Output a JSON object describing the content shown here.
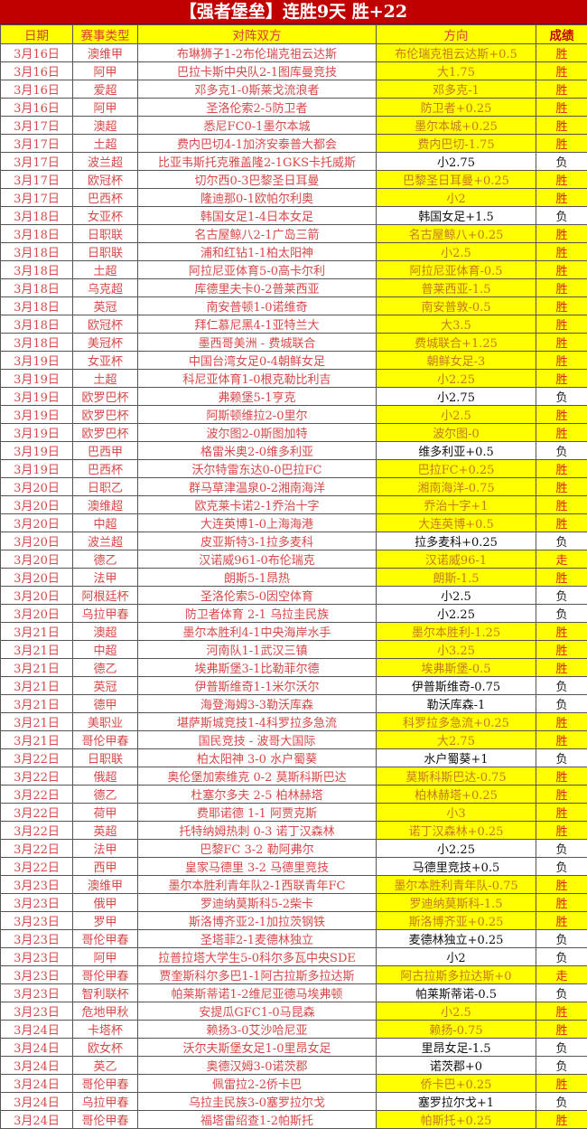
{
  "title": "【强者堡垒】连胜9天  胜+22",
  "colors": {
    "title_bg": "#c00000",
    "highlight": "#ffff00",
    "text_red": "#d84848",
    "win_text": "#c8781e"
  },
  "headers": {
    "date": "日期",
    "type": "赛事类型",
    "match": "对阵双方",
    "direction": "方向",
    "result": "成绩"
  },
  "rows": [
    {
      "date": "3月16日",
      "type": "澳维甲",
      "match": "布琳狮子1-2布伦瑞克祖云达斯",
      "direction": "布伦瑞克祖云达斯+0.5",
      "result": "胜"
    },
    {
      "date": "3月16日",
      "type": "阿甲",
      "match": "巴拉卡斯中央队2-1图库曼竞技",
      "direction": "大1.75",
      "result": "胜"
    },
    {
      "date": "3月16日",
      "type": "爱超",
      "match": "邓多克1-0斯莱戈流浪者",
      "direction": "邓多克-1",
      "result": "胜"
    },
    {
      "date": "3月16日",
      "type": "阿甲",
      "match": "圣洛伦索2-5防卫者",
      "direction": "防卫者+0.25",
      "result": "胜"
    },
    {
      "date": "3月17日",
      "type": "澳超",
      "match": "悉尼FC0-1墨尔本城",
      "direction": "墨尔本城+0.25",
      "result": "胜"
    },
    {
      "date": "3月17日",
      "type": "土超",
      "match": "费内巴切4-1加济安泰普大都会",
      "direction": "费内巴切-1.75",
      "result": "胜"
    },
    {
      "date": "3月17日",
      "type": "波兰超",
      "match": "比亚韦斯托克雅盖隆2-1GKS卡托威斯",
      "direction": "小2.75",
      "result": "负"
    },
    {
      "date": "3月17日",
      "type": "欧冠杯",
      "match": "切尔西0-3巴黎圣日耳曼",
      "direction": "巴黎圣日耳曼+0.25",
      "result": "胜"
    },
    {
      "date": "3月17日",
      "type": "巴西杯",
      "match": "隆迪那0-1欧帕尔利奥",
      "direction": "小2",
      "result": "胜"
    },
    {
      "date": "3月18日",
      "type": "女亚杯",
      "match": "韩国女足1-4日本女足",
      "direction": "韩国女足+1.5",
      "result": "负"
    },
    {
      "date": "3月18日",
      "type": "日职联",
      "match": "名古屋鲸八2-1广岛三箭",
      "direction": "名古屋鲸八+0.25",
      "result": "胜"
    },
    {
      "date": "3月18日",
      "type": "日职联",
      "match": "浦和红钻1-1柏太阳神",
      "direction": "小2.5",
      "result": "胜"
    },
    {
      "date": "3月18日",
      "type": "土超",
      "match": "阿拉尼亚体育5-0高卡尔利",
      "direction": "阿拉尼亚体育-0.5",
      "result": "胜"
    },
    {
      "date": "3月18日",
      "type": "乌克超",
      "match": "库德里夫卡0-2普莱西亚",
      "direction": "普莱西亚-1.5",
      "result": "胜"
    },
    {
      "date": "3月18日",
      "type": "英冠",
      "match": "南安普顿1-0诺维奇",
      "direction": "南安普敦-0.5",
      "result": "胜"
    },
    {
      "date": "3月18日",
      "type": "欧冠杯",
      "match": "拜仁慕尼黑4-1亚特兰大",
      "direction": "大3.5",
      "result": "胜"
    },
    {
      "date": "3月18日",
      "type": "美冠杯",
      "match": "墨西哥美洲 - 费城联合",
      "direction": "费城联合+1.25",
      "result": "胜"
    },
    {
      "date": "3月19日",
      "type": "女亚杯",
      "match": "中国台湾女足0-4朝鲜女足",
      "direction": "朝鲜女足-3",
      "result": "胜"
    },
    {
      "date": "3月19日",
      "type": "土超",
      "match": "科尼亚体育1-0根克勒比利吉",
      "direction": "小2.25",
      "result": "胜"
    },
    {
      "date": "3月19日",
      "type": "欧罗巴杯",
      "match": "弗赖堡5-1亨克",
      "direction": "小2.75",
      "result": "负"
    },
    {
      "date": "3月19日",
      "type": "欧罗巴杯",
      "match": "阿斯顿维拉2-0里尔",
      "direction": "小2.5",
      "result": "胜"
    },
    {
      "date": "3月19日",
      "type": "欧罗巴杯",
      "match": "波尔图2-0斯图加特",
      "direction": "波尔图-0",
      "result": "胜"
    },
    {
      "date": "3月19日",
      "type": "巴西甲",
      "match": "格雷米奥2-0维多利亚",
      "direction": "维多利亚+0.5",
      "result": "负"
    },
    {
      "date": "3月19日",
      "type": "巴西杯",
      "match": "沃尔特雷东达0-0巴拉FC",
      "direction": "巴拉FC+0.25",
      "result": "胜"
    },
    {
      "date": "3月20日",
      "type": "日职乙",
      "match": "群马草津温泉0-2湘南海洋",
      "direction": "湘南海洋-0.75",
      "result": "胜"
    },
    {
      "date": "3月20日",
      "type": "澳维超",
      "match": "欧克莱卡诺2-1乔治十字",
      "direction": "乔治十字+1",
      "result": "胜"
    },
    {
      "date": "3月20日",
      "type": "中超",
      "match": "大连英博1-0上海海港",
      "direction": "大连英博+0.5",
      "result": "胜"
    },
    {
      "date": "3月20日",
      "type": "波兰超",
      "match": "皮亚斯特3-1拉多麦科",
      "direction": "拉多麦科+0.25",
      "result": "负"
    },
    {
      "date": "3月20日",
      "type": "德乙",
      "match": "汉诺威961-0布伦瑞克",
      "direction": "汉诺威96-1",
      "result": "走"
    },
    {
      "date": "3月20日",
      "type": "法甲",
      "match": "朗斯5-1昂热",
      "direction": "朗斯-1.5",
      "result": "胜"
    },
    {
      "date": "3月20日",
      "type": "阿根廷杯",
      "match": "圣洛伦索5-0因空体育",
      "direction": "小2.5",
      "result": "负"
    },
    {
      "date": "3月20日",
      "type": "乌拉甲春",
      "match": "防卫者体育 2-1 乌拉圭民族",
      "direction": "小2.25",
      "result": "负"
    },
    {
      "date": "3月21日",
      "type": "澳超",
      "match": "墨尔本胜利4-1中央海岸水手",
      "direction": "墨尔本胜利-1.25",
      "result": "胜"
    },
    {
      "date": "3月21日",
      "type": "中超",
      "match": "河南队1-1武汉三镇",
      "direction": "小3.25",
      "result": "胜"
    },
    {
      "date": "3月21日",
      "type": "德乙",
      "match": "埃弗斯堡3-1比勒菲尔德",
      "direction": "埃弗斯堡-0.5",
      "result": "胜"
    },
    {
      "date": "3月21日",
      "type": "英冠",
      "match": "伊普斯维奇1-1米尔沃尔",
      "direction": "伊普斯维奇-0.75",
      "result": "负"
    },
    {
      "date": "3月21日",
      "type": "德甲",
      "match": "海登海姆3-3勒沃库森",
      "direction": "勒沃库森-1",
      "result": "负"
    },
    {
      "date": "3月21日",
      "type": "美职业",
      "match": "堪萨斯城竞技1-4科罗拉多急流",
      "direction": "科罗拉多急流+0.25",
      "result": "胜"
    },
    {
      "date": "3月21日",
      "type": "哥伦甲春",
      "match": "国民竞技 - 波哥大国际",
      "direction": "大2.75",
      "result": "胜"
    },
    {
      "date": "3月22日",
      "type": "日职联",
      "match": "柏太阳神 3-0 水户蜀葵",
      "direction": "水户蜀葵+1",
      "result": "负"
    },
    {
      "date": "3月22日",
      "type": "俄超",
      "match": "奥伦堡加索维克 0-2 莫斯科斯巴达",
      "direction": "莫斯科斯巴达-0.75",
      "result": "胜"
    },
    {
      "date": "3月22日",
      "type": "德乙",
      "match": "杜塞尔多夫 2-5 柏林赫塔",
      "direction": "柏林赫塔+0.25",
      "result": "胜"
    },
    {
      "date": "3月22日",
      "type": "荷甲",
      "match": "费耶诺德 1-1 阿贾克斯",
      "direction": "小3",
      "result": "胜"
    },
    {
      "date": "3月22日",
      "type": "英超",
      "match": "托特纳姆热刺 0-3 诺丁汉森林",
      "direction": "诺丁汉森林+0.25",
      "result": "胜"
    },
    {
      "date": "3月22日",
      "type": "法甲",
      "match": "巴黎FC 3-2 勒阿弗尔",
      "direction": "小2.25",
      "result": "负"
    },
    {
      "date": "3月22日",
      "type": "西甲",
      "match": "皇家马德里 3-2 马德里竞技",
      "direction": "马德里竞技+0.5",
      "result": "负"
    },
    {
      "date": "3月23日",
      "type": "澳维甲",
      "match": "墨尔本胜利青年队2-1西联青年FC",
      "direction": "墨尔本胜利青年队-0.75",
      "result": "胜"
    },
    {
      "date": "3月23日",
      "type": "俄甲",
      "match": "罗迪纳莫斯科5-2柴卡",
      "direction": "罗迪纳莫斯科-1.5",
      "result": "胜"
    },
    {
      "date": "3月23日",
      "type": "罗甲",
      "match": "斯洛博齐亚2-1加拉茨钢铁",
      "direction": "斯洛博齐亚+0.25",
      "result": "胜"
    },
    {
      "date": "3月23日",
      "type": "哥伦甲春",
      "match": "圣塔菲2-1麦德林独立",
      "direction": "麦德林独立+0.25",
      "result": "负"
    },
    {
      "date": "3月23日",
      "type": "阿甲",
      "match": "拉普拉塔大学生5-0科尔多瓦中央SDE",
      "direction": "小2",
      "result": "负"
    },
    {
      "date": "3月23日",
      "type": "哥伦甲春",
      "match": "贾奎斯科尔多巴1-1阿古拉斯多拉达斯",
      "direction": "阿古拉斯多拉达斯+0",
      "result": "走"
    },
    {
      "date": "3月23日",
      "type": "智利联杯",
      "match": "帕莱斯蒂诺1-2维尼亚德马埃弗顿",
      "direction": "帕莱斯蒂诺-0.5",
      "result": "负"
    },
    {
      "date": "3月23日",
      "type": "危地甲秋",
      "match": "安提瓜GFC1-0马昆森",
      "direction": "小2.5",
      "result": "胜"
    },
    {
      "date": "3月24日",
      "type": "卡塔杯",
      "match": "赖扬3-0艾沙哈尼亚",
      "direction": "赖扬-0.75",
      "result": "胜"
    },
    {
      "date": "3月24日",
      "type": "欧女杯",
      "match": "沃尔夫斯堡女足1-0里昂女足",
      "direction": "里昂女足-1.5",
      "result": "负"
    },
    {
      "date": "3月24日",
      "type": "英乙",
      "match": "奥德汉姆3-0诺茨郡",
      "direction": "诺茨郡+0",
      "result": "负"
    },
    {
      "date": "3月24日",
      "type": "哥伦甲春",
      "match": "佩雷拉2-2侨卡巴",
      "direction": "侨卡巴+0.25",
      "result": "胜"
    },
    {
      "date": "3月24日",
      "type": "乌拉甲春",
      "match": "乌拉圭民族3-0塞罗拉尔戈",
      "direction": "塞罗拉尔戈+1",
      "result": "负"
    },
    {
      "date": "3月24日",
      "type": "哥伦甲春",
      "match": "福塔雷绍查1-2帕斯托",
      "direction": "帕斯托+0.25",
      "result": "胜"
    }
  ]
}
